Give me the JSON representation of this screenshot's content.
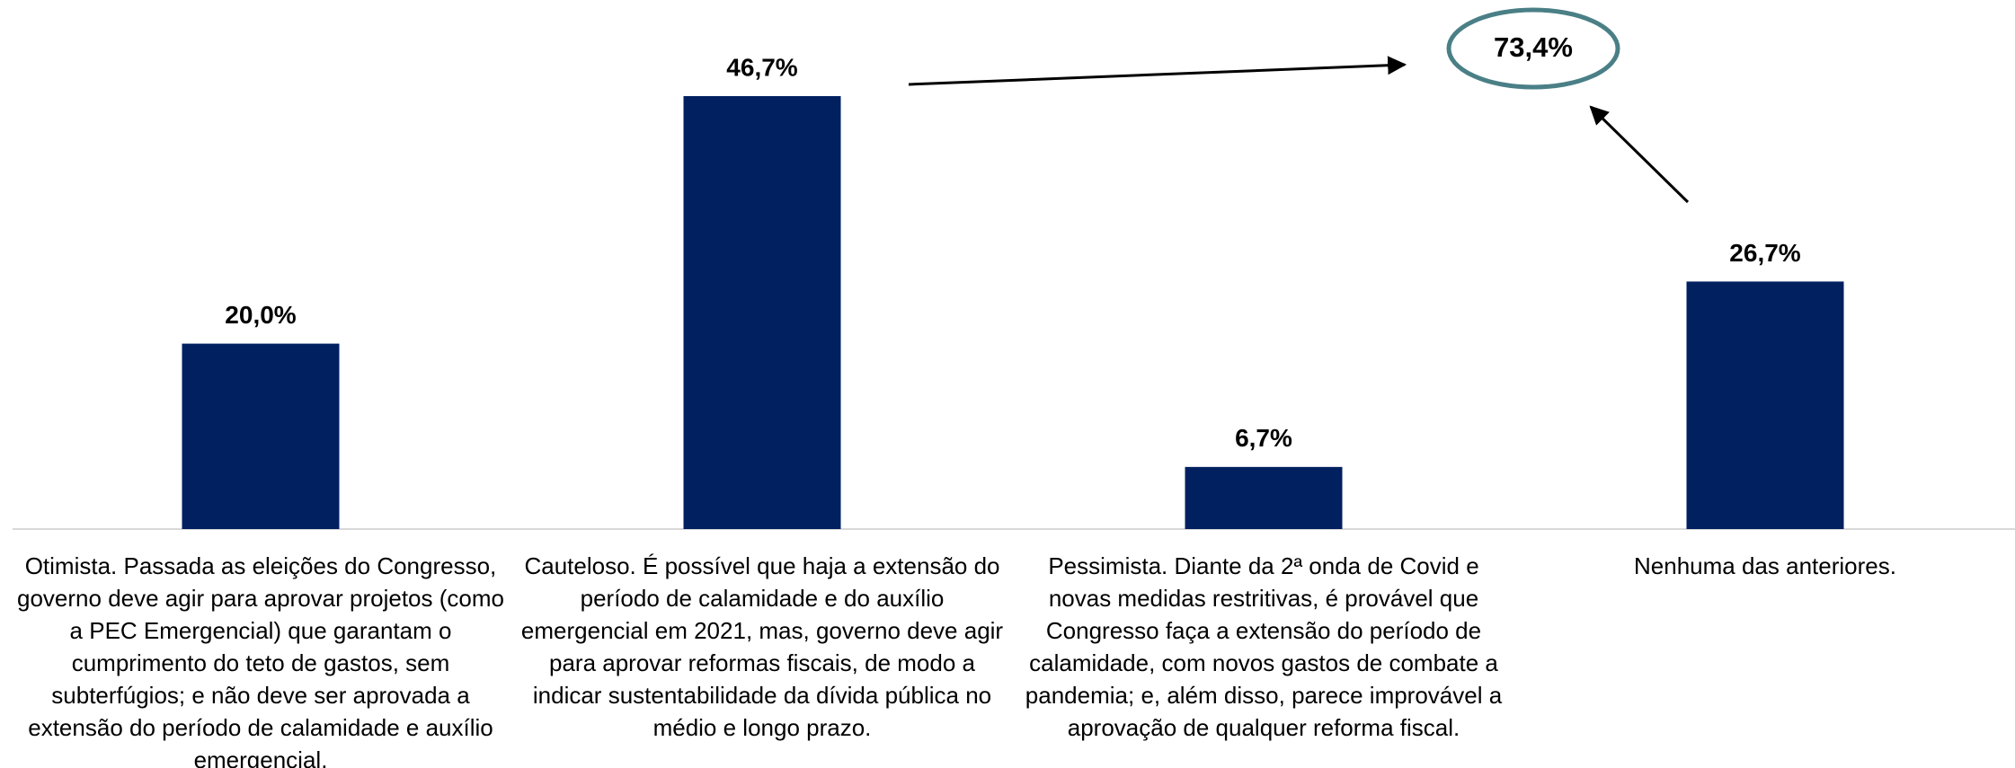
{
  "chart_data": {
    "type": "bar",
    "categories": [
      "Otimista. Passada as eleições do Congresso, governo deve agir para aprovar projetos (como a PEC Emergencial) que garantam o cumprimento do teto de gastos, sem subterfúgios; e não deve ser aprovada a extensão do período de calamidade e auxílio emergencial.",
      "Cauteloso. É possível que haja a extensão do período de calamidade e do auxílio emergencial em 2021, mas, governo deve agir para aprovar reformas fiscais, de modo a indicar sustentabilidade da dívida pública no médio e longo prazo.",
      "Pessimista. Diante da 2ª onda de Covid e novas medidas restritivas, é provável que Congresso faça a extensão do período de calamidade, com novos gastos de combate a pandemia; e, além disso, parece improvável a aprovação de qualquer reforma fiscal.",
      "Nenhuma das anteriores."
    ],
    "values": [
      20.0,
      46.7,
      6.7,
      26.7
    ],
    "value_labels": [
      "20,0%",
      "46,7%",
      "6,7%",
      "26,7%"
    ],
    "color": "#002060",
    "annotations": [
      "73,4%"
    ],
    "annotation_color": "#4a7f86"
  }
}
